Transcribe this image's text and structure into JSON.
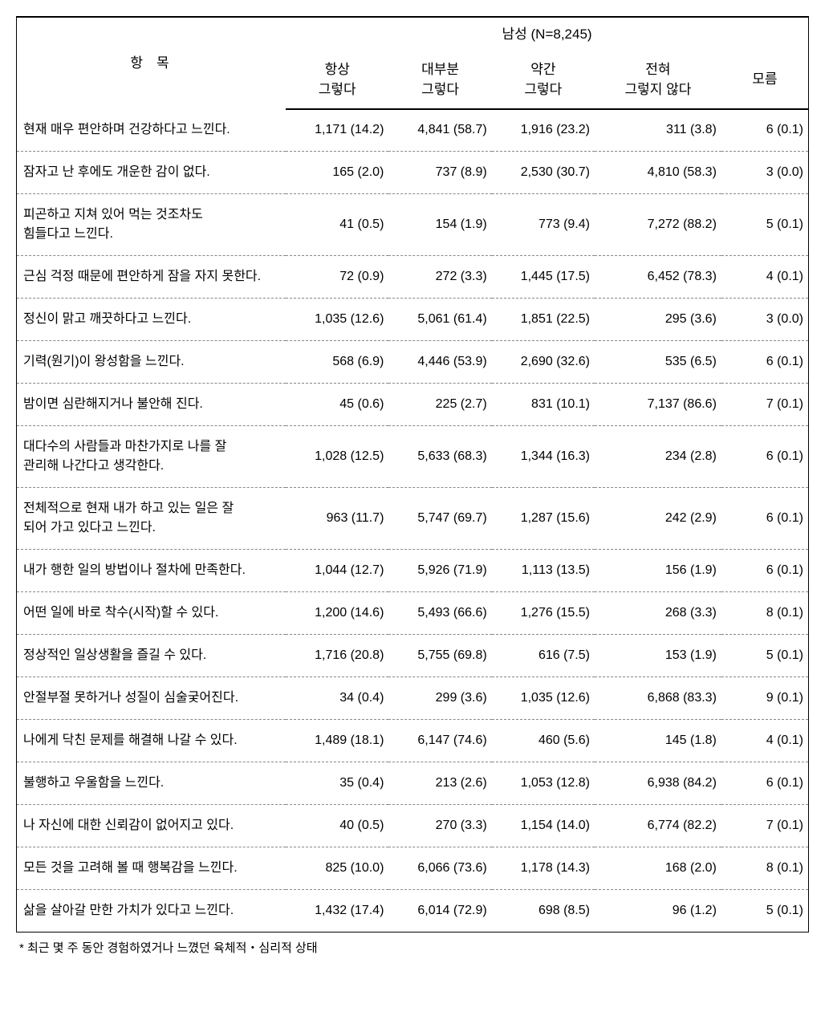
{
  "header": {
    "item_label": "항목",
    "group_label": "남성 (N=8,245)",
    "columns": [
      "항상\n그렇다",
      "대부분\n그렇다",
      "약간\n그렇다",
      "전혀\n그렇지 않다",
      "모름"
    ]
  },
  "rows": [
    {
      "label": "현재 매우 편안하며 건강하다고 느낀다.",
      "values": [
        "1,171 (14.2)",
        "4,841 (58.7)",
        "1,916 (23.2)",
        "311 (3.8)",
        "6 (0.1)"
      ]
    },
    {
      "label": "잠자고 난 후에도 개운한 감이 없다.",
      "values": [
        "165 (2.0)",
        "737 (8.9)",
        "2,530 (30.7)",
        "4,810 (58.3)",
        "3 (0.0)"
      ]
    },
    {
      "label": "피곤하고 지쳐 있어 먹는 것조차도\n힘들다고  느낀다.",
      "values": [
        "41 (0.5)",
        "154 (1.9)",
        "773 (9.4)",
        "7,272 (88.2)",
        "5 (0.1)"
      ]
    },
    {
      "label": "근심 걱정 때문에 편안하게 잠을 자지 못한다.",
      "values": [
        "72 (0.9)",
        "272 (3.3)",
        "1,445 (17.5)",
        "6,452 (78.3)",
        "4 (0.1)"
      ]
    },
    {
      "label": "정신이 맑고 깨끗하다고 느낀다.",
      "values": [
        "1,035 (12.6)",
        "5,061 (61.4)",
        "1,851 (22.5)",
        "295 (3.6)",
        "3 (0.0)"
      ]
    },
    {
      "label": "기력(원기)이 왕성함을 느낀다.",
      "values": [
        "568 (6.9)",
        "4,446 (53.9)",
        "2,690 (32.6)",
        "535 (6.5)",
        "6 (0.1)"
      ]
    },
    {
      "label": "밤이면 심란해지거나 불안해 진다.",
      "values": [
        "45 (0.6)",
        "225 (2.7)",
        "831 (10.1)",
        "7,137 (86.6)",
        "7 (0.1)"
      ]
    },
    {
      "label": "대다수의 사람들과 마찬가지로 나를 잘\n관리해 나간다고 생각한다.",
      "values": [
        "1,028 (12.5)",
        "5,633 (68.3)",
        "1,344 (16.3)",
        "234 (2.8)",
        "6 (0.1)"
      ]
    },
    {
      "label": "전체적으로 현재 내가 하고 있는 일은 잘\n되어 가고 있다고 느낀다.",
      "values": [
        "963 (11.7)",
        "5,747 (69.7)",
        "1,287 (15.6)",
        "242 (2.9)",
        "6 (0.1)"
      ]
    },
    {
      "label": "내가 행한 일의 방법이나 절차에 만족한다.",
      "values": [
        "1,044 (12.7)",
        "5,926 (71.9)",
        "1,113 (13.5)",
        "156 (1.9)",
        "6 (0.1)"
      ]
    },
    {
      "label": "어떤 일에 바로 착수(시작)할 수 있다.",
      "values": [
        "1,200 (14.6)",
        "5,493 (66.6)",
        "1,276 (15.5)",
        "268 (3.3)",
        "8 (0.1)"
      ]
    },
    {
      "label": "정상적인 일상생활을 즐길 수 있다.",
      "values": [
        "1,716 (20.8)",
        "5,755 (69.8)",
        "616 (7.5)",
        "153 (1.9)",
        "5 (0.1)"
      ]
    },
    {
      "label": "안절부절 못하거나 성질이 심술궂어진다.",
      "values": [
        "34 (0.4)",
        "299 (3.6)",
        "1,035 (12.6)",
        "6,868 (83.3)",
        "9 (0.1)"
      ]
    },
    {
      "label": "나에게 닥친 문제를 해결해 나갈 수 있다.",
      "values": [
        "1,489 (18.1)",
        "6,147 (74.6)",
        "460 (5.6)",
        "145 (1.8)",
        "4 (0.1)"
      ]
    },
    {
      "label": "불행하고 우울함을 느낀다.",
      "values": [
        "35 (0.4)",
        "213 (2.6)",
        "1,053 (12.8)",
        "6,938 (84.2)",
        "6 (0.1)"
      ]
    },
    {
      "label": "나 자신에 대한 신뢰감이 없어지고 있다.",
      "values": [
        "40 (0.5)",
        "270 (3.3)",
        "1,154 (14.0)",
        "6,774 (82.2)",
        "7 (0.1)"
      ]
    },
    {
      "label": "모든 것을 고려해 볼 때 행복감을 느낀다.",
      "values": [
        "825 (10.0)",
        "6,066 (73.6)",
        "1,178 (14.3)",
        "168 (2.0)",
        "8 (0.1)"
      ]
    },
    {
      "label": "삶을 살아갈 만한 가치가 있다고 느낀다.",
      "values": [
        "1,432 (17.4)",
        "6,014 (72.9)",
        "698 (8.5)",
        "96 (1.2)",
        "5 (0.1)"
      ]
    }
  ],
  "footnote": "* 최근 몇 주 동안 경험하였거나 느꼈던 육체적・심리적 상태",
  "col_widths": [
    "34%",
    "13%",
    "13%",
    "13%",
    "16%",
    "11%"
  ]
}
